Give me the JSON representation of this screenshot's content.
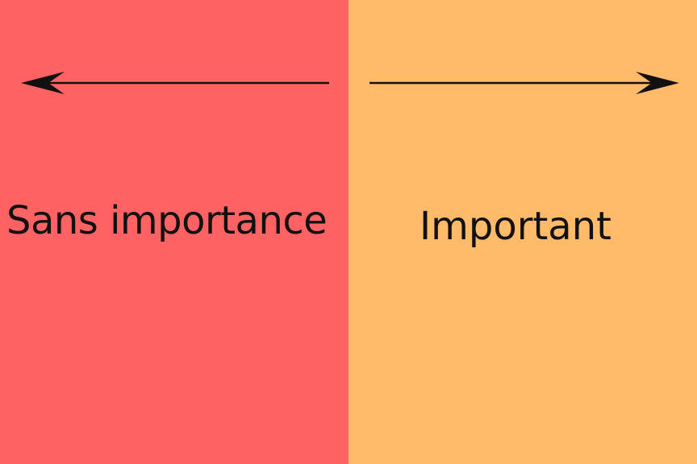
{
  "colors": {
    "left_panel": "#FF6262",
    "right_panel": "#FFBB6A",
    "ink": "#111111"
  },
  "left": {
    "label": "Sans importance",
    "arrow_icon": "arrow-left-icon"
  },
  "right": {
    "label": "Important",
    "arrow_icon": "arrow-right-icon"
  }
}
